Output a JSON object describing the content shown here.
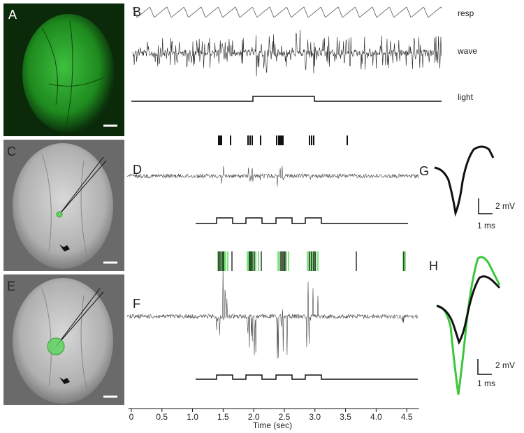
{
  "panel_labels": [
    "A",
    "B",
    "C",
    "D",
    "E",
    "F",
    "G",
    "H"
  ],
  "trace_labels": [
    "resp",
    "wave",
    "light"
  ],
  "scale_bars": {
    "G": {
      "voltage": "2 mV",
      "time": "1 ms"
    },
    "H": {
      "voltage": "2 mV",
      "time": "1 ms"
    }
  },
  "time_axis": {
    "title": "Time (sec)",
    "xlim": [
      -0.05,
      4.7
    ],
    "xticks": [
      0,
      0.5,
      {
        "value": 1,
        "label": "1.0"
      },
      1.5,
      {
        "value": 2,
        "label": "2.0"
      },
      2.5,
      {
        "value": 3,
        "label": "3.0"
      },
      3.5,
      {
        "value": 4,
        "label": "4.0"
      },
      4.5
    ]
  }
}
